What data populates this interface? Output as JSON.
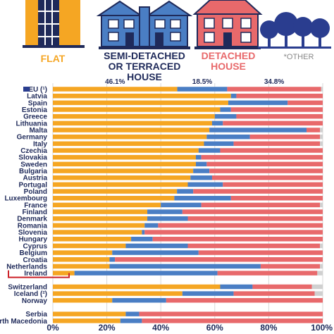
{
  "header": {
    "flat_label": "FLAT",
    "semi_label_line1": "SEMI-DETACHED",
    "semi_label_line2": "OR TERRACED HOUSE",
    "detached_label_line1": "DETACHED",
    "detached_label_line2": "HOUSE",
    "other_label": "*OTHER"
  },
  "colors": {
    "flat": "#f5a623",
    "semi": "#4a7ec4",
    "detached": "#e8696b",
    "other": "#d0d0d0",
    "highlight": "#cc2229",
    "label_orange": "#f5a623",
    "label_navy": "#1f2a5a",
    "label_red": "#e8696b",
    "label_gray": "#888888",
    "eu_flag": "#2a3d8f"
  },
  "icons": {
    "flat": "apartment-building-icon",
    "semi": "semi-detached-house-icon",
    "detached": "detached-house-icon",
    "other": "trees-icon"
  },
  "chart_data": {
    "type": "bar",
    "orientation": "horizontal",
    "stacked": true,
    "categories": [
      "EU (¹)",
      "Latvia",
      "Spain",
      "Estonia",
      "Greece",
      "Lithuania",
      "Malta",
      "Germany",
      "Italy",
      "Czechia",
      "Slovakia",
      "Sweden",
      "Bulgaria",
      "Austria",
      "Portugal",
      "Poland",
      "Luxembourg",
      "France",
      "Finland",
      "Denmark",
      "Romania",
      "Slovenia",
      "Hungary",
      "Cyprus",
      "Belgium",
      "Croatia",
      "Netherlands",
      "Ireland",
      "",
      "Switzerland",
      "Iceland (²)",
      "Norway",
      "",
      "Serbia",
      "North Macedonia"
    ],
    "highlighted_category": "Ireland",
    "series": [
      {
        "key": "flat",
        "values": [
          46.1,
          66,
          65,
          62,
          60,
          59,
          58,
          57,
          56,
          54,
          53,
          53,
          52,
          51,
          50,
          46,
          45,
          40,
          35,
          35,
          34,
          33,
          29,
          27,
          22,
          21,
          21,
          8,
          null,
          62,
          48,
          22,
          null,
          27,
          25
        ]
      },
      {
        "key": "semi",
        "values": [
          18.5,
          2,
          22,
          4,
          8,
          4,
          36,
          16,
          11,
          8,
          2,
          4,
          6,
          8,
          13,
          6,
          21,
          15,
          13,
          15,
          5,
          1,
          8,
          23,
          32,
          2,
          56,
          53,
          null,
          12,
          19,
          20,
          null,
          5,
          8
        ]
      },
      {
        "key": "detached",
        "values": [
          34.8,
          32,
          13,
          34,
          32,
          37,
          5,
          26,
          32,
          38,
          45,
          43,
          42,
          41,
          37,
          48,
          34,
          44,
          52,
          50,
          61,
          66,
          63,
          49,
          46,
          77,
          22,
          37,
          null,
          22,
          30,
          58,
          null,
          68,
          67
        ]
      },
      {
        "key": "other",
        "values": [
          0.6,
          0,
          0,
          0,
          0,
          0,
          1,
          1,
          1,
          0,
          0,
          0,
          0,
          0,
          0,
          0,
          0,
          1,
          0,
          0,
          0,
          0,
          0,
          1,
          0,
          0,
          1,
          2,
          null,
          4,
          3,
          0,
          null,
          0,
          0
        ]
      }
    ],
    "eu_labels": [
      "46.1%",
      "18.5%",
      "34.8%"
    ],
    "x_ticks": [
      "0%",
      "20%",
      "40%",
      "60%",
      "80%",
      "100%"
    ],
    "xlim": [
      0,
      100
    ],
    "grid": true,
    "xlabel": "",
    "ylabel": ""
  }
}
